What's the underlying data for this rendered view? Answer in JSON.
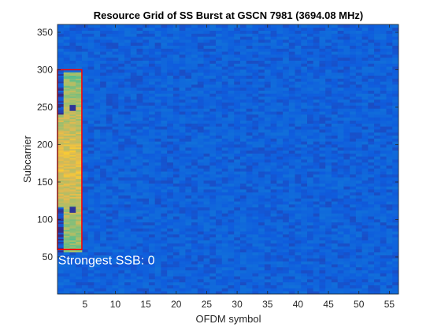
{
  "chart_data": {
    "type": "heatmap",
    "title": "Resource Grid of SS Burst at GSCN 7981 (3694.08 MHz)",
    "xlabel": "OFDM symbol",
    "ylabel": "Subcarrier",
    "xlim": [
      0.5,
      56.5
    ],
    "ylim": [
      0.5,
      360.5
    ],
    "xticks": [
      5,
      10,
      15,
      20,
      25,
      30,
      35,
      40,
      45,
      50,
      55
    ],
    "yticks": [
      50,
      100,
      150,
      200,
      250,
      300,
      350
    ],
    "grid": false,
    "colormap": "parula",
    "background_level": 0.12,
    "ssb_block": {
      "symbols": [
        1,
        4
      ],
      "subcarriers": [
        57,
        296
      ],
      "level": 0.72,
      "low_regions": [
        {
          "symbols": [
            1,
            1
          ],
          "subcarriers": [
            57,
            116
          ],
          "level": 0.05
        },
        {
          "symbols": [
            1,
            1
          ],
          "subcarriers": [
            241,
            296
          ],
          "level": 0.05
        }
      ],
      "dmrs_pilots": [
        {
          "symbol": 3,
          "subcarrier": 113
        },
        {
          "symbol": 3,
          "subcarrier": 249
        }
      ]
    },
    "highlight_box": {
      "symbols": [
        0.5,
        4.5
      ],
      "subcarriers": [
        60,
        300
      ],
      "color": "#ff0000"
    },
    "annotation": {
      "text": "Strongest SSB: 0",
      "x": 0.6,
      "y": 40,
      "color": "#ffffff"
    }
  }
}
